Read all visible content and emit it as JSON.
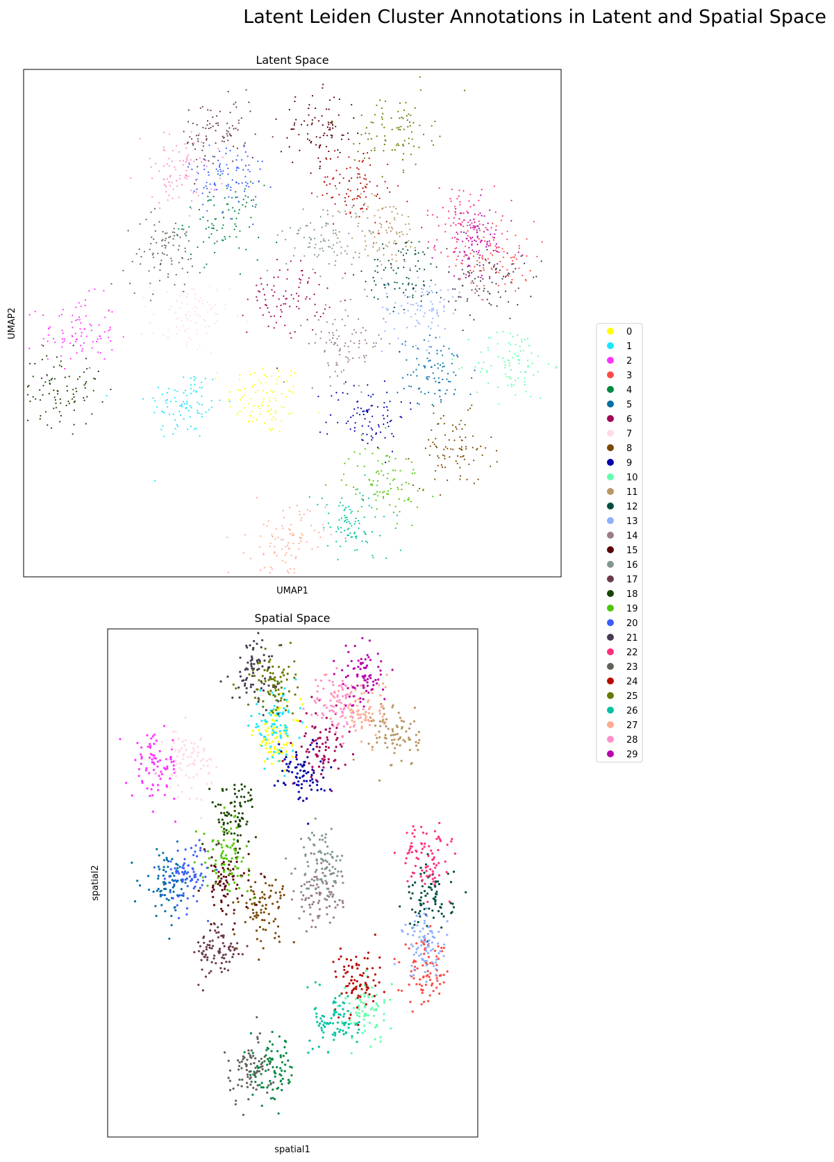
{
  "figure": {
    "title": "Latent Leiden Cluster Annotations in Latent and Spatial Space"
  },
  "legend": {
    "location": "right of plots",
    "items": [
      {
        "label": "0",
        "color": "#ffff00"
      },
      {
        "label": "1",
        "color": "#1ce6ff"
      },
      {
        "label": "2",
        "color": "#ff34ff"
      },
      {
        "label": "3",
        "color": "#ff4a46"
      },
      {
        "label": "4",
        "color": "#008941"
      },
      {
        "label": "5",
        "color": "#006fa6"
      },
      {
        "label": "6",
        "color": "#a30059"
      },
      {
        "label": "7",
        "color": "#ffdbe5"
      },
      {
        "label": "8",
        "color": "#7a4900"
      },
      {
        "label": "9",
        "color": "#0000a6"
      },
      {
        "label": "10",
        "color": "#63ffac"
      },
      {
        "label": "11",
        "color": "#b79762"
      },
      {
        "label": "12",
        "color": "#004d43"
      },
      {
        "label": "13",
        "color": "#8fb0ff"
      },
      {
        "label": "14",
        "color": "#997d87"
      },
      {
        "label": "15",
        "color": "#5a0007"
      },
      {
        "label": "16",
        "color": "#809693"
      },
      {
        "label": "17",
        "color": "#6a3a4c"
      },
      {
        "label": "18",
        "color": "#1b4400"
      },
      {
        "label": "19",
        "color": "#4fc601"
      },
      {
        "label": "20",
        "color": "#3b5dff"
      },
      {
        "label": "21",
        "color": "#4a3b53"
      },
      {
        "label": "22",
        "color": "#ff2f80"
      },
      {
        "label": "23",
        "color": "#61615a"
      },
      {
        "label": "24",
        "color": "#ba0900"
      },
      {
        "label": "25",
        "color": "#6b7900"
      },
      {
        "label": "26",
        "color": "#00c2a0"
      },
      {
        "label": "27",
        "color": "#ffaa92"
      },
      {
        "label": "28",
        "color": "#ff90c9"
      },
      {
        "label": "29",
        "color": "#b903aa"
      }
    ]
  },
  "chart_data": [
    {
      "type": "scatter",
      "title": "Latent Space",
      "xlabel": "UMAP1",
      "ylabel": "UMAP2",
      "xlim": [
        0,
        100
      ],
      "ylim": [
        0,
        100
      ],
      "ticks": "none",
      "grid": false,
      "cluster_centroids": [
        {
          "cluster": "0",
          "x": 45,
          "y": 35
        },
        {
          "cluster": "1",
          "x": 30,
          "y": 34
        },
        {
          "cluster": "2",
          "x": 10,
          "y": 48
        },
        {
          "cluster": "3",
          "x": 88,
          "y": 63
        },
        {
          "cluster": "4",
          "x": 37,
          "y": 70
        },
        {
          "cluster": "5",
          "x": 77,
          "y": 40
        },
        {
          "cluster": "6",
          "x": 49,
          "y": 55
        },
        {
          "cluster": "7",
          "x": 31,
          "y": 51
        },
        {
          "cluster": "8",
          "x": 80,
          "y": 25
        },
        {
          "cluster": "9",
          "x": 64,
          "y": 32
        },
        {
          "cluster": "10",
          "x": 91,
          "y": 42
        },
        {
          "cluster": "11",
          "x": 67,
          "y": 68
        },
        {
          "cluster": "12",
          "x": 71,
          "y": 60
        },
        {
          "cluster": "13",
          "x": 74,
          "y": 53
        },
        {
          "cluster": "14",
          "x": 60,
          "y": 46
        },
        {
          "cluster": "15",
          "x": 55,
          "y": 88
        },
        {
          "cluster": "16",
          "x": 56,
          "y": 67
        },
        {
          "cluster": "17",
          "x": 36,
          "y": 87
        },
        {
          "cluster": "18",
          "x": 7,
          "y": 37
        },
        {
          "cluster": "19",
          "x": 67,
          "y": 19
        },
        {
          "cluster": "20",
          "x": 38,
          "y": 79
        },
        {
          "cluster": "21",
          "x": 86,
          "y": 58
        },
        {
          "cluster": "22",
          "x": 82,
          "y": 70
        },
        {
          "cluster": "23",
          "x": 26,
          "y": 64
        },
        {
          "cluster": "24",
          "x": 62,
          "y": 77
        },
        {
          "cluster": "25",
          "x": 69,
          "y": 88
        },
        {
          "cluster": "26",
          "x": 61,
          "y": 10
        },
        {
          "cluster": "27",
          "x": 49,
          "y": 7
        },
        {
          "cluster": "28",
          "x": 29,
          "y": 80
        },
        {
          "cluster": "29",
          "x": 84,
          "y": 66
        }
      ]
    },
    {
      "type": "scatter",
      "title": "Spatial Space",
      "xlabel": "spatial1",
      "ylabel": "spatial2",
      "xlim": [
        0,
        100
      ],
      "ylim": [
        0,
        100
      ],
      "ticks": "none",
      "grid": false,
      "cluster_centroids": [
        {
          "cluster": "0",
          "x": 46,
          "y": 79
        },
        {
          "cluster": "1",
          "x": 45,
          "y": 81
        },
        {
          "cluster": "2",
          "x": 13,
          "y": 73
        },
        {
          "cluster": "3",
          "x": 86,
          "y": 32
        },
        {
          "cluster": "4",
          "x": 45,
          "y": 13
        },
        {
          "cluster": "5",
          "x": 16,
          "y": 50
        },
        {
          "cluster": "6",
          "x": 58,
          "y": 77
        },
        {
          "cluster": "7",
          "x": 22,
          "y": 74
        },
        {
          "cluster": "8",
          "x": 42,
          "y": 45
        },
        {
          "cluster": "9",
          "x": 52,
          "y": 72
        },
        {
          "cluster": "10",
          "x": 70,
          "y": 25
        },
        {
          "cluster": "11",
          "x": 78,
          "y": 79
        },
        {
          "cluster": "12",
          "x": 87,
          "y": 47
        },
        {
          "cluster": "13",
          "x": 86,
          "y": 38
        },
        {
          "cluster": "14",
          "x": 57,
          "y": 47
        },
        {
          "cluster": "15",
          "x": 32,
          "y": 50
        },
        {
          "cluster": "16",
          "x": 58,
          "y": 54
        },
        {
          "cluster": "17",
          "x": 30,
          "y": 36
        },
        {
          "cluster": "18",
          "x": 34,
          "y": 64
        },
        {
          "cluster": "19",
          "x": 32,
          "y": 55
        },
        {
          "cluster": "20",
          "x": 22,
          "y": 52
        },
        {
          "cluster": "21",
          "x": 40,
          "y": 92
        },
        {
          "cluster": "22",
          "x": 86,
          "y": 55
        },
        {
          "cluster": "23",
          "x": 38,
          "y": 13
        },
        {
          "cluster": "24",
          "x": 68,
          "y": 31
        },
        {
          "cluster": "25",
          "x": 44,
          "y": 89
        },
        {
          "cluster": "26",
          "x": 62,
          "y": 23
        },
        {
          "cluster": "27",
          "x": 69,
          "y": 84
        },
        {
          "cluster": "28",
          "x": 62,
          "y": 85
        },
        {
          "cluster": "29",
          "x": 69,
          "y": 91
        }
      ]
    }
  ]
}
